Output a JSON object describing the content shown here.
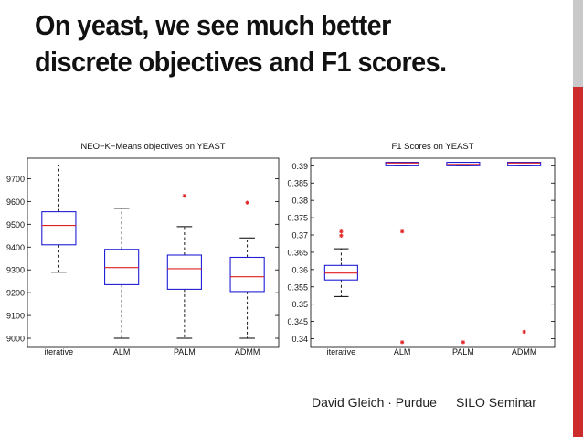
{
  "slide": {
    "title_line1": "On yeast, we see much better",
    "title_line2": "discrete objectives and F1 scores.",
    "footer_author": "David Gleich · Purdue",
    "footer_event": "SILO Seminar",
    "colors": {
      "box": "#1f1fd6",
      "median": "#e02020",
      "outlier": "#e02020",
      "whisker": "#000000",
      "accent": "#cc2c2c"
    }
  },
  "chart_data": [
    {
      "type": "box",
      "title": "NEO−K−Means objectives on YEAST",
      "categories": [
        "iterative",
        "ALM",
        "PALM",
        "ADMM"
      ],
      "ylim": [
        8960,
        9790
      ],
      "yticks": [
        9000,
        9100,
        9200,
        9300,
        9400,
        9500,
        9600,
        9700
      ],
      "ytick_labels": [
        "9000",
        "9100",
        "9200",
        "9300",
        "9400",
        "9500",
        "9600",
        "9700"
      ],
      "boxes": [
        {
          "name": "iterative",
          "whisker_low": 9290,
          "q1": 9410,
          "median": 9495,
          "q3": 9555,
          "whisker_high": 9760,
          "outliers": []
        },
        {
          "name": "ALM",
          "whisker_low": 9000,
          "q1": 9235,
          "median": 9310,
          "q3": 9390,
          "whisker_high": 9570,
          "outliers": []
        },
        {
          "name": "PALM",
          "whisker_low": 9000,
          "q1": 9215,
          "median": 9305,
          "q3": 9365,
          "whisker_high": 9490,
          "outliers": [
            9625
          ]
        },
        {
          "name": "ADMM",
          "whisker_low": 9000,
          "q1": 9205,
          "median": 9270,
          "q3": 9355,
          "whisker_high": 9440,
          "outliers": [
            9595
          ]
        }
      ]
    },
    {
      "type": "box",
      "title": "F1 Scores on YEAST",
      "categories": [
        "iterative",
        "ALM",
        "PALM",
        "ADMM"
      ],
      "ylim": [
        0.3375,
        0.3922
      ],
      "yticks": [
        0.34,
        0.345,
        0.35,
        0.355,
        0.36,
        0.365,
        0.37,
        0.375,
        0.38,
        0.385,
        0.39
      ],
      "ytick_labels": [
        "0.34",
        "0.345",
        "0.35",
        "0.355",
        "0.36",
        "0.365",
        "0.37",
        "0.375",
        "0.38",
        "0.385",
        "0.39"
      ],
      "boxes": [
        {
          "name": "iterative",
          "whisker_low": 0.3522,
          "q1": 0.357,
          "median": 0.359,
          "q3": 0.3612,
          "whisker_high": 0.366,
          "outliers": [
            0.3698,
            0.371
          ]
        },
        {
          "name": "ALM",
          "whisker_low": 0.39,
          "q1": 0.39,
          "median": 0.3908,
          "q3": 0.391,
          "whisker_high": 0.391,
          "outliers": [
            0.371,
            0.339
          ]
        },
        {
          "name": "PALM",
          "whisker_low": 0.39,
          "q1": 0.39,
          "median": 0.3904,
          "q3": 0.391,
          "whisker_high": 0.391,
          "outliers": [
            0.339
          ]
        },
        {
          "name": "ADMM",
          "whisker_low": 0.39,
          "q1": 0.39,
          "median": 0.3908,
          "q3": 0.391,
          "whisker_high": 0.391,
          "outliers": [
            0.342
          ]
        }
      ]
    }
  ]
}
